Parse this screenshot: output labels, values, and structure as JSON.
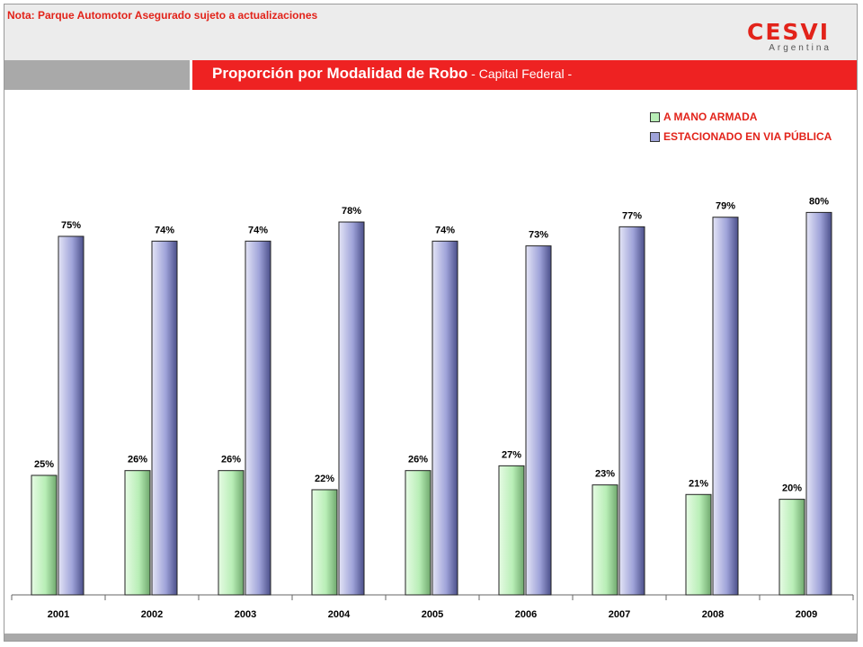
{
  "header": {
    "note": "Nota: Parque Automotor Asegurado sujeto a actualizaciones",
    "logo_word": "CESVI",
    "logo_sub": "Argentina"
  },
  "colors": {
    "green": "#b8eeb6",
    "purple": "#9fa3d9",
    "accent_red": "#e2231a"
  },
  "chart_data": {
    "type": "bar",
    "title": "Proporción por Modalidad de Robo",
    "subtitle": " - Capital Federal -",
    "categories": [
      "2001",
      "2002",
      "2003",
      "2004",
      "2005",
      "2006",
      "2007",
      "2008",
      "2009"
    ],
    "series": [
      {
        "name": "A MANO ARMADA",
        "values": [
          25,
          26,
          26,
          22,
          26,
          27,
          23,
          21,
          20
        ],
        "labels": [
          "25%",
          "26%",
          "26%",
          "22%",
          "26%",
          "27%",
          "23%",
          "21%",
          "20%"
        ]
      },
      {
        "name": "ESTACIONADO EN VIA PÚBLICA",
        "values": [
          75,
          74,
          74,
          78,
          74,
          73,
          77,
          79,
          80
        ],
        "labels": [
          "75%",
          "74%",
          "74%",
          "78%",
          "74%",
          "73%",
          "77%",
          "79%",
          "80%"
        ]
      }
    ],
    "ylim": [
      0,
      100
    ],
    "grid": false,
    "legend": "top-right"
  }
}
